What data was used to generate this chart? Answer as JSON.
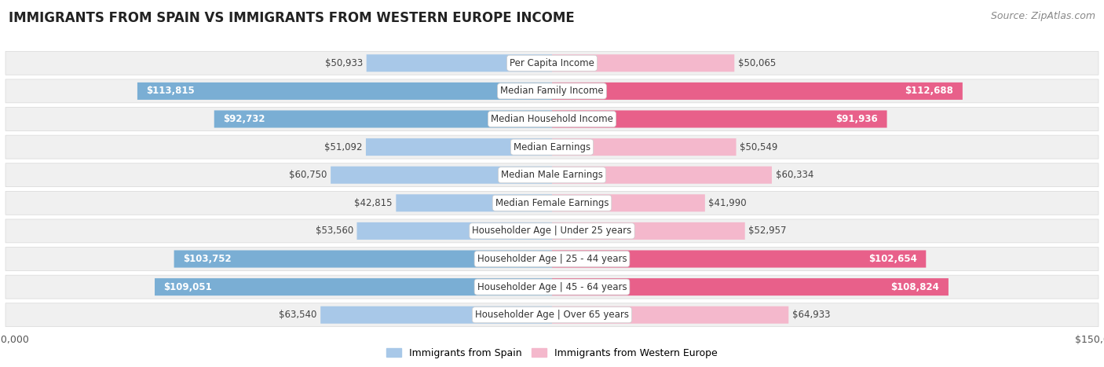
{
  "title": "IMMIGRANTS FROM SPAIN VS IMMIGRANTS FROM WESTERN EUROPE INCOME",
  "source": "Source: ZipAtlas.com",
  "categories": [
    "Per Capita Income",
    "Median Family Income",
    "Median Household Income",
    "Median Earnings",
    "Median Male Earnings",
    "Median Female Earnings",
    "Householder Age | Under 25 years",
    "Householder Age | 25 - 44 years",
    "Householder Age | 45 - 64 years",
    "Householder Age | Over 65 years"
  ],
  "spain_values": [
    50933,
    113815,
    92732,
    51092,
    60750,
    42815,
    53560,
    103752,
    109051,
    63540
  ],
  "western_values": [
    50065,
    112688,
    91936,
    50549,
    60334,
    41990,
    52957,
    102654,
    108824,
    64933
  ],
  "spain_color_light": "#a8c8e8",
  "spain_color_dark": "#7aaed4",
  "western_color_light": "#f4b8cc",
  "western_color_dark": "#e8608a",
  "spain_label": "Immigrants from Spain",
  "western_label": "Immigrants from Western Europe",
  "row_bg": "#f0f0f0",
  "row_border": "#d8d8d8",
  "max_value": 150000,
  "large_value_threshold": 80000,
  "title_fontsize": 12,
  "source_fontsize": 9,
  "tick_fontsize": 9,
  "legend_fontsize": 9,
  "value_fontsize": 8.5,
  "category_fontsize": 8.5,
  "figsize": [
    14.06,
    4.67
  ],
  "dpi": 100
}
